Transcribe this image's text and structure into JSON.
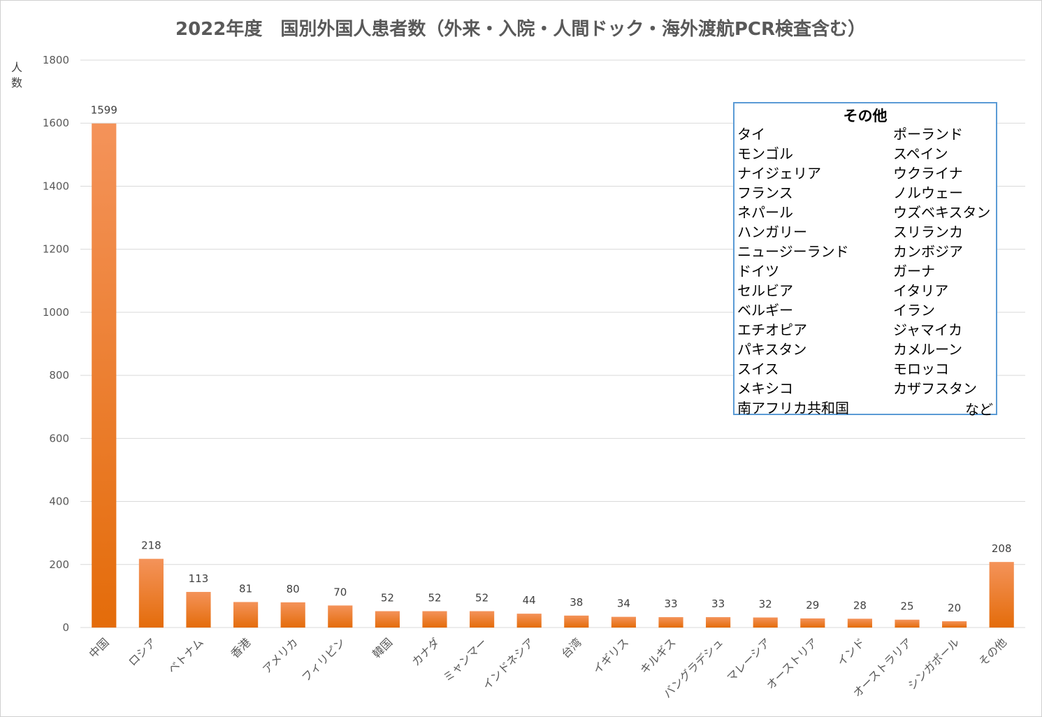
{
  "chart_data": {
    "type": "bar",
    "title": "2022年度　国別外国人患者数（外来・入院・人間ドック・海外渡航PCR検査含む）",
    "ylabel": "人数",
    "xlabel": "",
    "ylim": [
      0,
      1800
    ],
    "yticks": [
      0,
      200,
      400,
      600,
      800,
      1000,
      1200,
      1400,
      1600,
      1800
    ],
    "grid": true,
    "bar_color_top": "#f4935a",
    "bar_color_bottom": "#e46c0a",
    "categories": [
      "中国",
      "ロシア",
      "ベトナム",
      "香港",
      "アメリカ",
      "フィリピン",
      "韓国",
      "カナダ",
      "ミャンマー",
      "インドネシア",
      "台湾",
      "イギリス",
      "キルギス",
      "バングラデシュ",
      "マレーシア",
      "オーストリア",
      "インド",
      "オーストラリア",
      "シンガポール",
      "その他"
    ],
    "values": [
      1599,
      218,
      113,
      81,
      80,
      70,
      52,
      52,
      52,
      44,
      38,
      34,
      33,
      33,
      32,
      29,
      28,
      25,
      20,
      208
    ]
  },
  "legend_box": {
    "title": "その他",
    "left_items": [
      "タイ",
      "モンゴル",
      "ナイジェリア",
      "フランス",
      "ネパール",
      "ハンガリー",
      "ニュージーランド",
      "ドイツ",
      "セルビア",
      "ベルギー",
      "エチオピア",
      "パキスタン",
      "スイス",
      "メキシコ",
      "南アフリカ共和国"
    ],
    "right_items": [
      "ポーランド",
      "スペイン",
      "ウクライナ",
      "ノルウェー",
      "ウズベキスタン",
      "スリランカ",
      "カンボジア",
      "ガーナ",
      "イタリア",
      "イラン",
      "ジャマイカ",
      "カメルーン",
      "モロッコ",
      "カザフスタン"
    ],
    "etc_label": "など",
    "border_color": "#5b9bd5"
  }
}
